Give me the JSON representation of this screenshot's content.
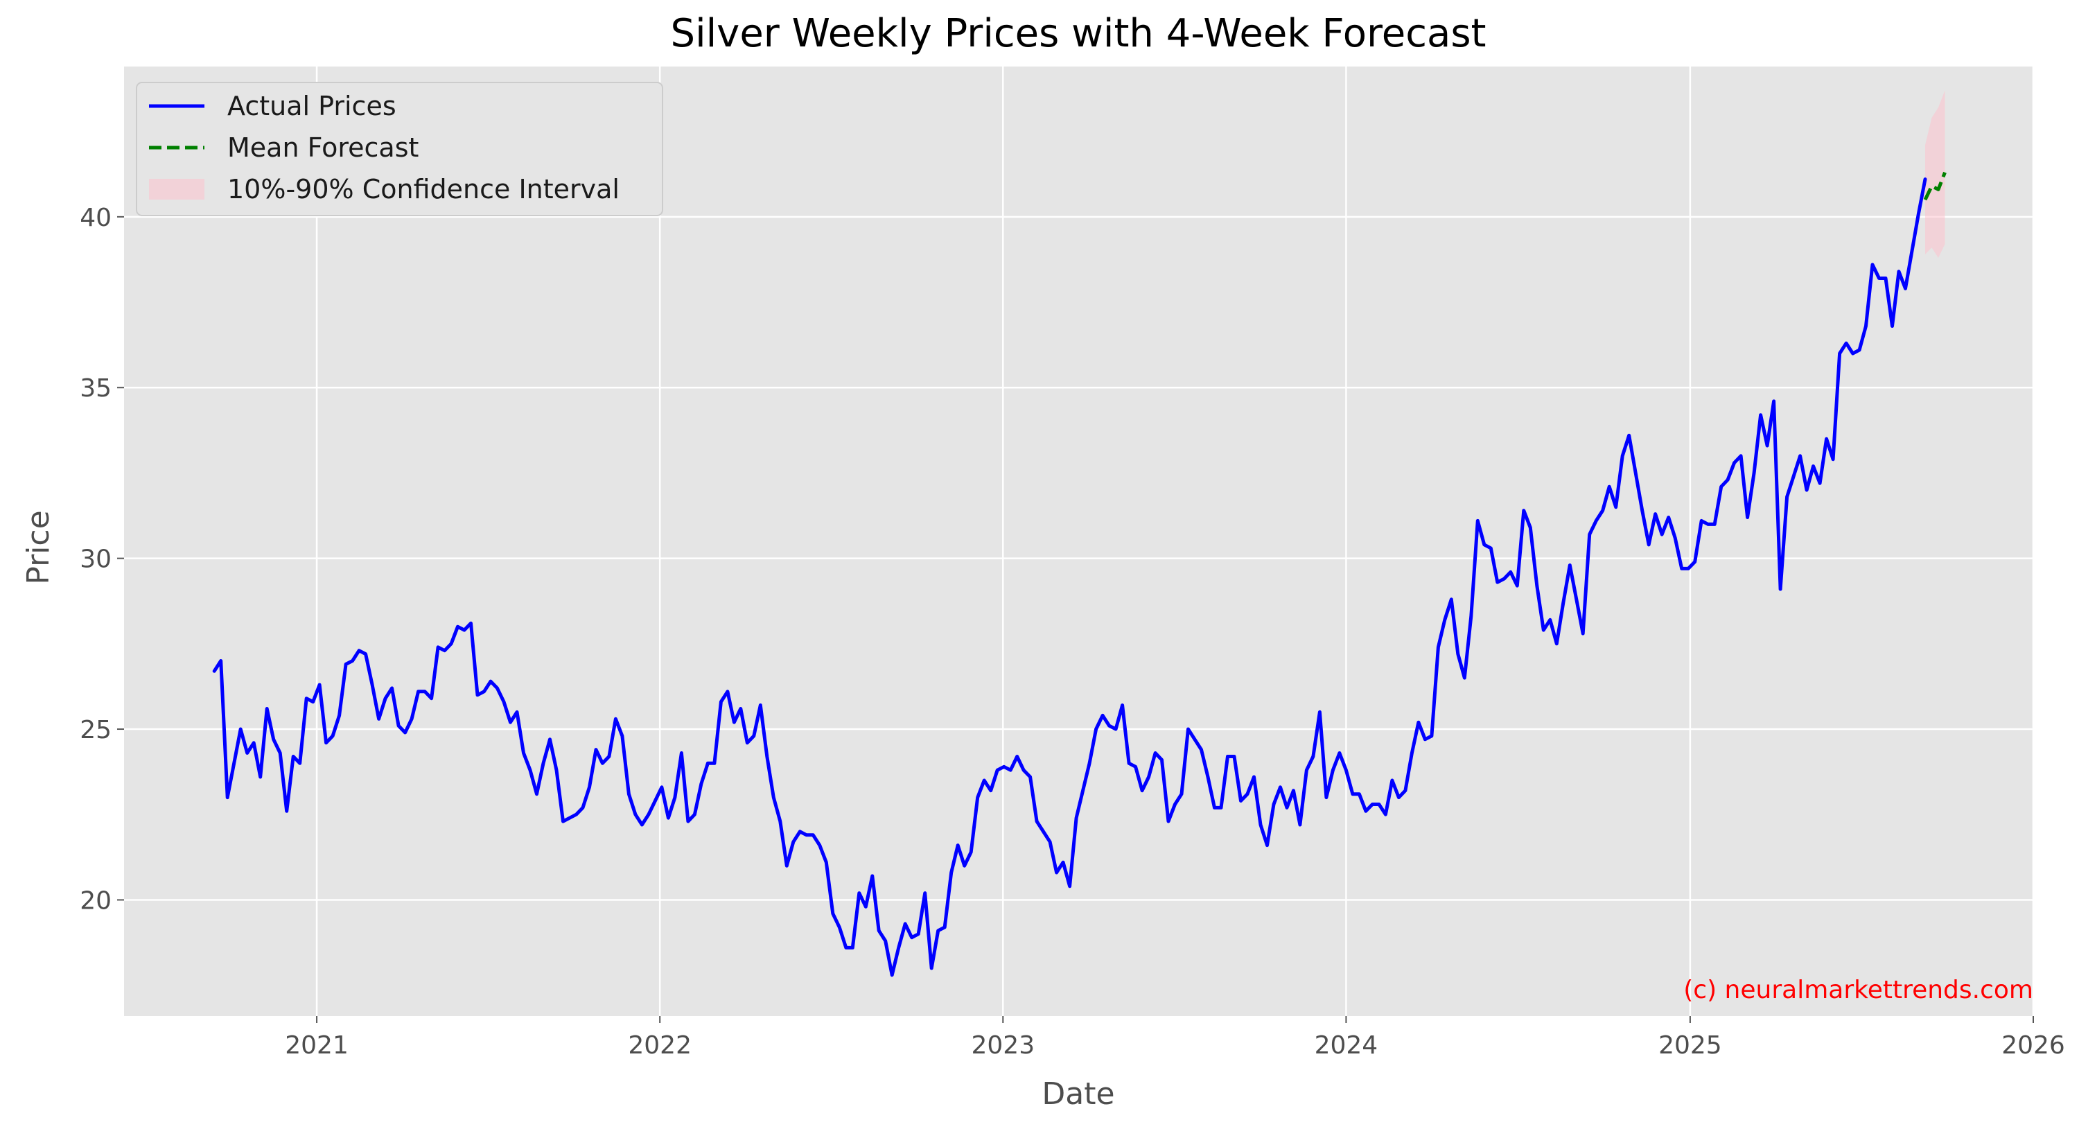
{
  "chart_data": {
    "type": "line",
    "title": "Silver Weekly Prices with 4-Week Forecast",
    "xlabel": "Date",
    "ylabel": "Price",
    "xlim": [
      "2020-06-10",
      "2026-01-01"
    ],
    "ylim": [
      16.6,
      44.4
    ],
    "x_ticks": [
      "2021",
      "2022",
      "2023",
      "2024",
      "2025",
      "2026"
    ],
    "y_ticks": [
      20,
      25,
      30,
      35,
      40
    ],
    "grid": true,
    "legend_position": "top-left",
    "watermark": "(c) neuralmarkettrends.com",
    "series": [
      {
        "name": "Actual Prices",
        "style": "solid",
        "color": "#0000ff",
        "start_date": "2020-09-14",
        "interval_days": 7,
        "values": [
          26.7,
          27.0,
          23.0,
          24.0,
          25.0,
          24.3,
          24.6,
          23.6,
          25.6,
          24.7,
          24.3,
          22.6,
          24.2,
          24.0,
          25.9,
          25.8,
          26.3,
          24.6,
          24.8,
          25.4,
          26.9,
          27.0,
          27.3,
          27.2,
          26.3,
          25.3,
          25.9,
          26.2,
          25.1,
          24.9,
          25.3,
          26.1,
          26.1,
          25.9,
          27.4,
          27.3,
          27.5,
          28.0,
          27.9,
          28.1,
          26.0,
          26.1,
          26.4,
          26.2,
          25.8,
          25.2,
          25.5,
          24.3,
          23.8,
          23.1,
          24.0,
          24.7,
          23.8,
          22.3,
          22.4,
          22.5,
          22.7,
          23.3,
          24.4,
          24.0,
          24.2,
          25.3,
          24.8,
          23.1,
          22.5,
          22.2,
          22.5,
          22.9,
          23.3,
          22.4,
          23.0,
          24.3,
          22.3,
          22.5,
          23.4,
          24.0,
          24.0,
          25.8,
          26.1,
          25.2,
          25.6,
          24.6,
          24.8,
          25.7,
          24.2,
          23.0,
          22.3,
          21.0,
          21.7,
          22.0,
          21.9,
          21.9,
          21.6,
          21.1,
          19.6,
          19.2,
          18.6,
          18.6,
          20.2,
          19.8,
          20.7,
          19.1,
          18.8,
          17.8,
          18.6,
          19.3,
          18.9,
          19.0,
          20.2,
          18.0,
          19.1,
          19.2,
          20.8,
          21.6,
          21.0,
          21.4,
          23.0,
          23.5,
          23.2,
          23.8,
          23.9,
          23.8,
          24.2,
          23.8,
          23.6,
          22.3,
          22.0,
          21.7,
          20.8,
          21.1,
          20.4,
          22.4,
          23.2,
          24.0,
          25.0,
          25.4,
          25.1,
          25.0,
          25.7,
          24.0,
          23.9,
          23.2,
          23.6,
          24.3,
          24.1,
          22.3,
          22.8,
          23.1,
          25.0,
          24.7,
          24.4,
          23.6,
          22.7,
          22.7,
          24.2,
          24.2,
          22.9,
          23.1,
          23.6,
          22.2,
          21.6,
          22.8,
          23.3,
          22.7,
          23.2,
          22.2,
          23.8,
          24.2,
          25.5,
          23.0,
          23.8,
          24.3,
          23.8,
          23.1,
          23.1,
          22.6,
          22.8,
          22.8,
          22.5,
          23.5,
          23.0,
          23.2,
          24.3,
          25.2,
          24.7,
          24.8,
          27.4,
          28.2,
          28.8,
          27.2,
          26.5,
          28.3,
          31.1,
          30.4,
          30.3,
          29.3,
          29.4,
          29.6,
          29.2,
          31.4,
          30.9,
          29.2,
          27.9,
          28.2,
          27.5,
          28.7,
          29.8,
          28.8,
          27.8,
          30.7,
          31.1,
          31.4,
          32.1,
          31.5,
          33.0,
          33.6,
          32.5,
          31.4,
          30.4,
          31.3,
          30.7,
          31.2,
          30.6,
          29.7,
          29.7,
          29.9,
          31.1,
          31.0,
          31.0,
          32.1,
          32.3,
          32.8,
          33.0,
          31.2,
          32.5,
          34.2,
          33.3,
          34.6,
          29.1,
          31.8,
          32.4,
          33.0,
          32.0,
          32.7,
          32.2,
          33.5,
          32.9,
          36.0,
          36.3,
          36.0,
          36.1,
          36.8,
          38.6,
          38.2,
          38.2,
          36.8,
          38.4,
          37.9,
          39.0,
          40.1,
          41.1
        ]
      },
      {
        "name": "Mean Forecast",
        "style": "dashed",
        "color": "#008000",
        "start_date": "2025-09-08",
        "interval_days": 7,
        "values": [
          40.5,
          40.9,
          40.8,
          41.3
        ]
      }
    ],
    "confidence_band": {
      "name": "10%-90% Confidence Interval",
      "color": "#ffc0cb",
      "start_date": "2025-09-08",
      "interval_days": 7,
      "lower": [
        38.9,
        39.1,
        38.8,
        39.2
      ],
      "upper": [
        42.1,
        42.9,
        43.2,
        43.7
      ]
    }
  }
}
